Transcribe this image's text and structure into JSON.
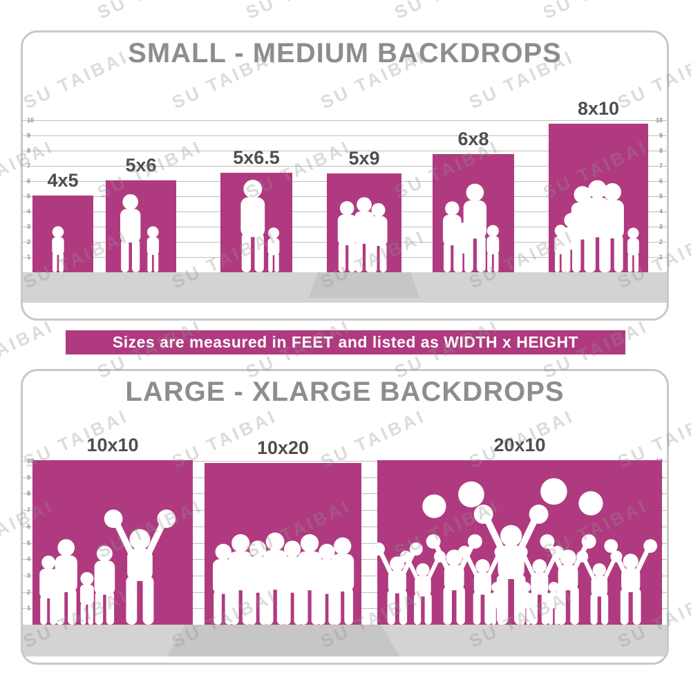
{
  "watermark": {
    "text": "SU TAIBAI"
  },
  "banner": {
    "text": "Sizes are measured in FEET and listed as WIDTH x HEIGHT"
  },
  "colors": {
    "magenta": "#b03a7f",
    "title_gray": "#8d8d8d",
    "label_gray": "#4e4e4e",
    "floor_gray": "#d3d3d3",
    "pedestal_gray": "#c6c6c6",
    "ruler_line": "#bdbdbd",
    "tick_gray": "#8f8f8f",
    "border_gray": "#c8c8c8"
  },
  "chart_data": [
    {
      "type": "bar",
      "title": "SMALL - MEDIUM BACKDROPS",
      "unit": "feet",
      "size_format": "WIDTH x HEIGHT",
      "axis_range": [
        0,
        10
      ],
      "axis_ticks": [
        1,
        2,
        3,
        4,
        5,
        6,
        7,
        8,
        9,
        10
      ],
      "tick_sides": "both",
      "categories": [
        "4x5",
        "5x6",
        "5x6.5",
        "5x9",
        "6x8",
        "8x10"
      ],
      "bars": [
        {
          "label": "4x5",
          "width_ft": 4,
          "height_ft": 5,
          "silhouette": "toddler-girl",
          "figures": [
            {
              "x": 0.42,
              "h": 0.6,
              "type": "child"
            }
          ]
        },
        {
          "label": "5x6",
          "width_ft": 5,
          "height_ft": 6,
          "silhouette": "mother-and-child",
          "figures": [
            {
              "x": 0.35,
              "h": 0.85,
              "type": "adult"
            },
            {
              "x": 0.67,
              "h": 0.5,
              "type": "child"
            }
          ]
        },
        {
          "label": "5x6.5",
          "width_ft": 5,
          "height_ft": 6.5,
          "silhouette": "father-and-child",
          "figures": [
            {
              "x": 0.45,
              "h": 0.93,
              "type": "adult"
            },
            {
              "x": 0.74,
              "h": 0.45,
              "type": "child"
            }
          ]
        },
        {
          "label": "5x9",
          "width_ft": 5,
          "height_ft": 9,
          "silhouette": "family-group",
          "pedestal": true,
          "figures": [
            {
              "x": 0.27,
              "h": 0.72,
              "type": "adult"
            },
            {
              "x": 0.5,
              "h": 0.76,
              "type": "adult"
            },
            {
              "x": 0.69,
              "h": 0.7,
              "type": "adult"
            },
            {
              "x": 0.61,
              "h": 0.35,
              "type": "child"
            }
          ]
        },
        {
          "label": "6x8",
          "width_ft": 6,
          "height_ft": 8,
          "silhouette": "family-of-four",
          "figures": [
            {
              "x": 0.24,
              "h": 0.6,
              "type": "adult"
            },
            {
              "x": 0.52,
              "h": 0.75,
              "type": "adult"
            },
            {
              "x": 0.38,
              "h": 0.42,
              "type": "child"
            },
            {
              "x": 0.74,
              "h": 0.4,
              "type": "child"
            }
          ]
        },
        {
          "label": "8x10",
          "width_ft": 8,
          "height_ft": 10,
          "silhouette": "large-family-group",
          "figures": [
            {
              "x": 0.34,
              "h": 0.58,
              "type": "adult"
            },
            {
              "x": 0.49,
              "h": 0.62,
              "type": "adult"
            },
            {
              "x": 0.64,
              "h": 0.6,
              "type": "adult"
            },
            {
              "x": 0.12,
              "h": 0.32,
              "type": "child"
            },
            {
              "x": 0.23,
              "h": 0.4,
              "type": "child"
            },
            {
              "x": 0.85,
              "h": 0.3,
              "type": "child"
            }
          ]
        }
      ]
    },
    {
      "type": "bar",
      "title": "LARGE - XLARGE BACKDROPS",
      "unit": "feet",
      "size_format": "WIDTH x HEIGHT",
      "axis_range": [
        0,
        10
      ],
      "axis_ticks": [
        1,
        2,
        3,
        4,
        5,
        6,
        7,
        8,
        9,
        10
      ],
      "tick_sides": "both",
      "categories": [
        "10x10",
        "10x20",
        "20x10"
      ],
      "bars": [
        {
          "label": "10x10",
          "width_ft": 10,
          "height_ft": 10,
          "silhouette": "celebrating-family",
          "figures": [
            {
              "x": 0.1,
              "h": 0.42,
              "type": "adult"
            },
            {
              "x": 0.21,
              "h": 0.52,
              "type": "adult"
            },
            {
              "x": 0.34,
              "h": 0.32,
              "type": "child"
            },
            {
              "x": 0.45,
              "h": 0.48,
              "type": "adult"
            },
            {
              "x": 0.67,
              "h": 0.7,
              "type": "cheer"
            }
          ]
        },
        {
          "label": "10x20",
          "width_ft": 10,
          "height_ft": 20,
          "silhouette": "group-of-adults",
          "pedestal": true,
          "figures": [
            {
              "x": 0.12,
              "h": 0.5,
              "type": "adult"
            },
            {
              "x": 0.23,
              "h": 0.56,
              "type": "adult"
            },
            {
              "x": 0.34,
              "h": 0.52,
              "type": "adult"
            },
            {
              "x": 0.45,
              "h": 0.57,
              "type": "adult"
            },
            {
              "x": 0.56,
              "h": 0.52,
              "type": "adult"
            },
            {
              "x": 0.67,
              "h": 0.56,
              "type": "adult"
            },
            {
              "x": 0.78,
              "h": 0.5,
              "type": "adult"
            },
            {
              "x": 0.88,
              "h": 0.54,
              "type": "adult"
            }
          ]
        },
        {
          "label": "20x10",
          "width_ft": 20,
          "height_ft": 10,
          "silhouette": "cheerleading-squad",
          "figures": [
            {
              "x": 0.07,
              "h": 0.5,
              "type": "cheer"
            },
            {
              "x": 0.16,
              "h": 0.45,
              "type": "cheer"
            },
            {
              "x": 0.27,
              "h": 0.55,
              "type": "cheer"
            },
            {
              "x": 0.37,
              "h": 0.48,
              "type": "cheer"
            },
            {
              "x": 0.47,
              "h": 0.73,
              "type": "cheer"
            },
            {
              "x": 0.57,
              "h": 0.48,
              "type": "cheer"
            },
            {
              "x": 0.67,
              "h": 0.55,
              "type": "cheer"
            },
            {
              "x": 0.78,
              "h": 0.45,
              "type": "cheer"
            },
            {
              "x": 0.89,
              "h": 0.52,
              "type": "cheer"
            },
            {
              "x": 0.42,
              "h": 0.26,
              "type": "child"
            },
            {
              "x": 0.52,
              "h": 0.26,
              "type": "child"
            },
            {
              "x": 0.62,
              "h": 0.26,
              "type": "child"
            },
            {
              "x": 0.2,
              "h": 0.8,
              "type": "pompom"
            },
            {
              "x": 0.33,
              "h": 0.88,
              "type": "pompom"
            },
            {
              "x": 0.62,
              "h": 0.9,
              "type": "pompom"
            },
            {
              "x": 0.75,
              "h": 0.82,
              "type": "pompom"
            }
          ]
        }
      ]
    }
  ]
}
